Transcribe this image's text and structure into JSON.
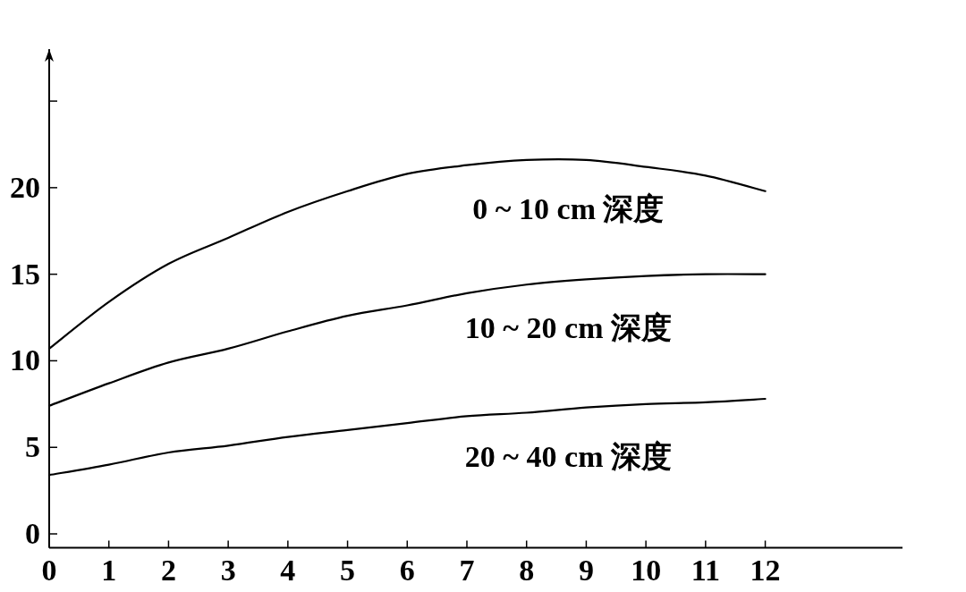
{
  "chart_data": {
    "type": "line",
    "x": [
      0,
      1,
      2,
      3,
      4,
      5,
      6,
      7,
      8,
      9,
      10,
      11,
      12
    ],
    "series": [
      {
        "name": "0 ~ 10 cm 深度",
        "color": "#000000",
        "values": [
          10.7,
          13.4,
          15.6,
          17.1,
          18.6,
          19.8,
          20.8,
          21.3,
          21.6,
          21.6,
          21.2,
          20.7,
          19.8
        ]
      },
      {
        "name": "10 ~ 20 cm 深度",
        "color": "#000000",
        "values": [
          7.4,
          8.7,
          9.9,
          10.7,
          11.7,
          12.6,
          13.2,
          13.9,
          14.4,
          14.7,
          14.9,
          15.0,
          15.0
        ]
      },
      {
        "name": "20 ~ 40 cm 深度",
        "color": "#000000",
        "values": [
          3.4,
          4.0,
          4.7,
          5.1,
          5.6,
          6.0,
          6.4,
          6.8,
          7.0,
          7.3,
          7.5,
          7.6,
          7.8
        ]
      }
    ],
    "xlim": [
      0,
      14.3
    ],
    "ylim": [
      -0.8,
      28
    ],
    "xticks": [
      0,
      1,
      2,
      3,
      4,
      5,
      6,
      7,
      8,
      9,
      10,
      11,
      12
    ],
    "yticks": [
      0,
      5,
      10,
      15,
      20,
      {
        "value": 25,
        "label": null
      }
    ],
    "grid": false,
    "line_style": "solid",
    "marker": "none"
  }
}
